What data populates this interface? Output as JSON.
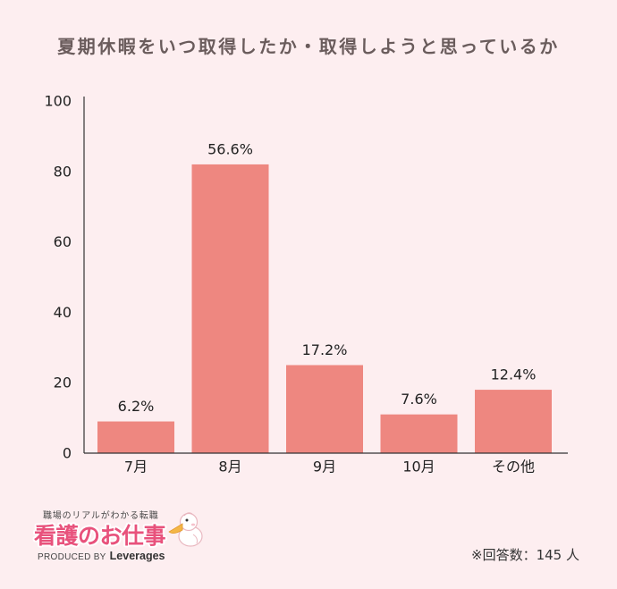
{
  "colors": {
    "background": "#fdeef0",
    "title": "#6a5c5c",
    "bar": "#ee8780",
    "axis": "#333333",
    "brand_pink": "#e8527c"
  },
  "chart_data": {
    "type": "bar",
    "title": "夏期休暇をいつ取得したか・取得しようと思っているか",
    "categories": [
      "7月",
      "8月",
      "9月",
      "10月",
      "その他"
    ],
    "values": [
      9,
      82,
      25,
      11,
      18
    ],
    "data_labels": [
      "6.2%",
      "56.6%",
      "17.2%",
      "7.6%",
      "12.4%"
    ],
    "ylim": [
      0,
      100
    ],
    "yticks": [
      0,
      20,
      40,
      60,
      80,
      100
    ],
    "grid": false,
    "legend": "none"
  },
  "footer": {
    "note": "※回答数：145 人"
  },
  "logo": {
    "tagline": "職場のリアルがわかる転職",
    "brand": "看護のお仕事",
    "produced_by": "PRODUCED BY",
    "company": "Leverages",
    "mascot_icon": "pelican-icon"
  }
}
